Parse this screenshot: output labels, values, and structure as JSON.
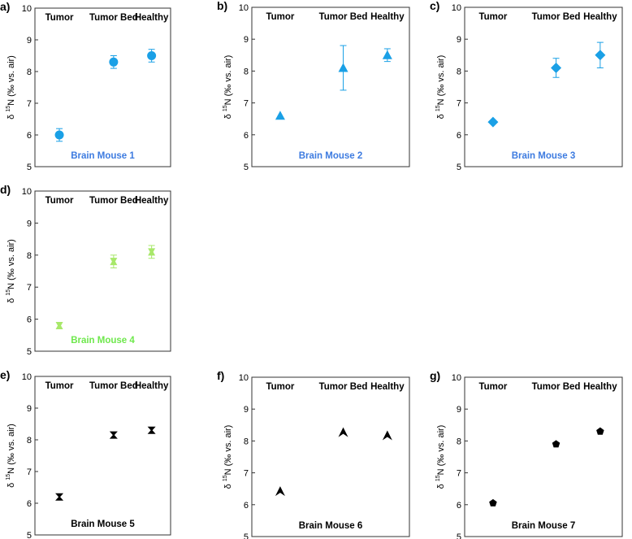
{
  "chart_data": [
    {
      "panel": "a)",
      "type": "scatter",
      "title": "Brain Mouse 1",
      "color": "#1aa0e6",
      "title_color": "#3d7be0",
      "marker": "circle",
      "categories": [
        "Tumor",
        "Tumor Bed",
        "Healthy"
      ],
      "values": [
        6.0,
        8.3,
        8.5
      ],
      "errors": [
        0.2,
        0.2,
        0.2
      ],
      "ylim": [
        5,
        10
      ],
      "yticks": [
        "5",
        "6",
        "7",
        "8",
        "9",
        "10"
      ],
      "ylabel": {
        "delta": "δ",
        "sup": "15",
        "rest": "N (‰ vs. air)"
      }
    },
    {
      "panel": "b)",
      "type": "scatter",
      "title": "Brain Mouse 2",
      "color": "#1aa0e6",
      "title_color": "#3d7be0",
      "marker": "triangle",
      "categories": [
        "Tumor",
        "Tumor Bed",
        "Healthy"
      ],
      "values": [
        6.6,
        8.1,
        8.5
      ],
      "errors": [
        0.0,
        0.7,
        0.2
      ],
      "ylim": [
        5,
        10
      ],
      "yticks": [
        "5",
        "6",
        "7",
        "8",
        "9",
        "10"
      ],
      "ylabel": {
        "delta": "δ",
        "sup": "15",
        "rest": "N (‰ vs. air)"
      }
    },
    {
      "panel": "c)",
      "type": "scatter",
      "title": "Brain Mouse 3",
      "color": "#1aa0e6",
      "title_color": "#3d7be0",
      "marker": "diamond",
      "categories": [
        "Tumor",
        "Tumor Bed",
        "Healthy"
      ],
      "values": [
        6.4,
        8.1,
        8.5
      ],
      "errors": [
        0.0,
        0.3,
        0.4
      ],
      "ylim": [
        5,
        10
      ],
      "yticks": [
        "5",
        "6",
        "7",
        "8",
        "9",
        "10"
      ],
      "ylabel": {
        "delta": "δ",
        "sup": "15",
        "rest": "N (‰ vs. air)"
      }
    },
    {
      "panel": "d)",
      "type": "scatter",
      "title": "Brain Mouse 4",
      "color": "#a8e86a",
      "title_color": "#6ee84c",
      "marker": "bowtie",
      "categories": [
        "Tumor",
        "Tumor Bed",
        "Healthy"
      ],
      "values": [
        5.8,
        7.8,
        8.1
      ],
      "errors": [
        0.1,
        0.2,
        0.2
      ],
      "ylim": [
        5,
        10
      ],
      "yticks": [
        "5",
        "6",
        "7",
        "8",
        "9",
        "10"
      ],
      "ylabel": {
        "delta": "δ",
        "sup": "15",
        "rest": "N (‰ vs. air)"
      }
    },
    {
      "panel": "e)",
      "type": "scatter",
      "title": "Brain Mouse 5",
      "color": "#000000",
      "title_color": "#000000",
      "marker": "hourglass",
      "categories": [
        "Tumor",
        "Tumor Bed",
        "Healthy"
      ],
      "values": [
        6.2,
        8.15,
        8.3
      ],
      "errors": [
        0.0,
        0.0,
        0.0
      ],
      "ylim": [
        5,
        10
      ],
      "yticks": [
        "5",
        "6",
        "7",
        "8",
        "9",
        "10"
      ],
      "ylabel": {
        "delta": "δ",
        "sup": "15",
        "rest": "N (‰ vs. air)"
      }
    },
    {
      "panel": "f)",
      "type": "scatter",
      "title": "Brain Mouse 6",
      "color": "#000000",
      "title_color": "#000000",
      "marker": "arrowhead",
      "categories": [
        "Tumor",
        "Tumor Bed",
        "Healthy"
      ],
      "values": [
        6.4,
        8.25,
        8.15
      ],
      "errors": [
        0.0,
        0.0,
        0.0
      ],
      "ylim": [
        5,
        10
      ],
      "yticks": [
        "5",
        "6",
        "7",
        "8",
        "9",
        "10"
      ],
      "ylabel": {
        "delta": "δ",
        "sup": "15",
        "rest": "N (‰ vs. air)"
      }
    },
    {
      "panel": "g)",
      "type": "scatter",
      "title": "Brain Mouse 7",
      "color": "#000000",
      "title_color": "#000000",
      "marker": "pentagon",
      "categories": [
        "Tumor",
        "Tumor Bed",
        "Healthy"
      ],
      "values": [
        6.05,
        7.9,
        8.3
      ],
      "errors": [
        0.0,
        0.0,
        0.0
      ],
      "ylim": [
        5,
        10
      ],
      "yticks": [
        "5",
        "6",
        "7",
        "8",
        "9",
        "10"
      ],
      "ylabel": {
        "delta": "δ",
        "sup": "15",
        "rest": "N (‰ vs. air)"
      }
    }
  ]
}
